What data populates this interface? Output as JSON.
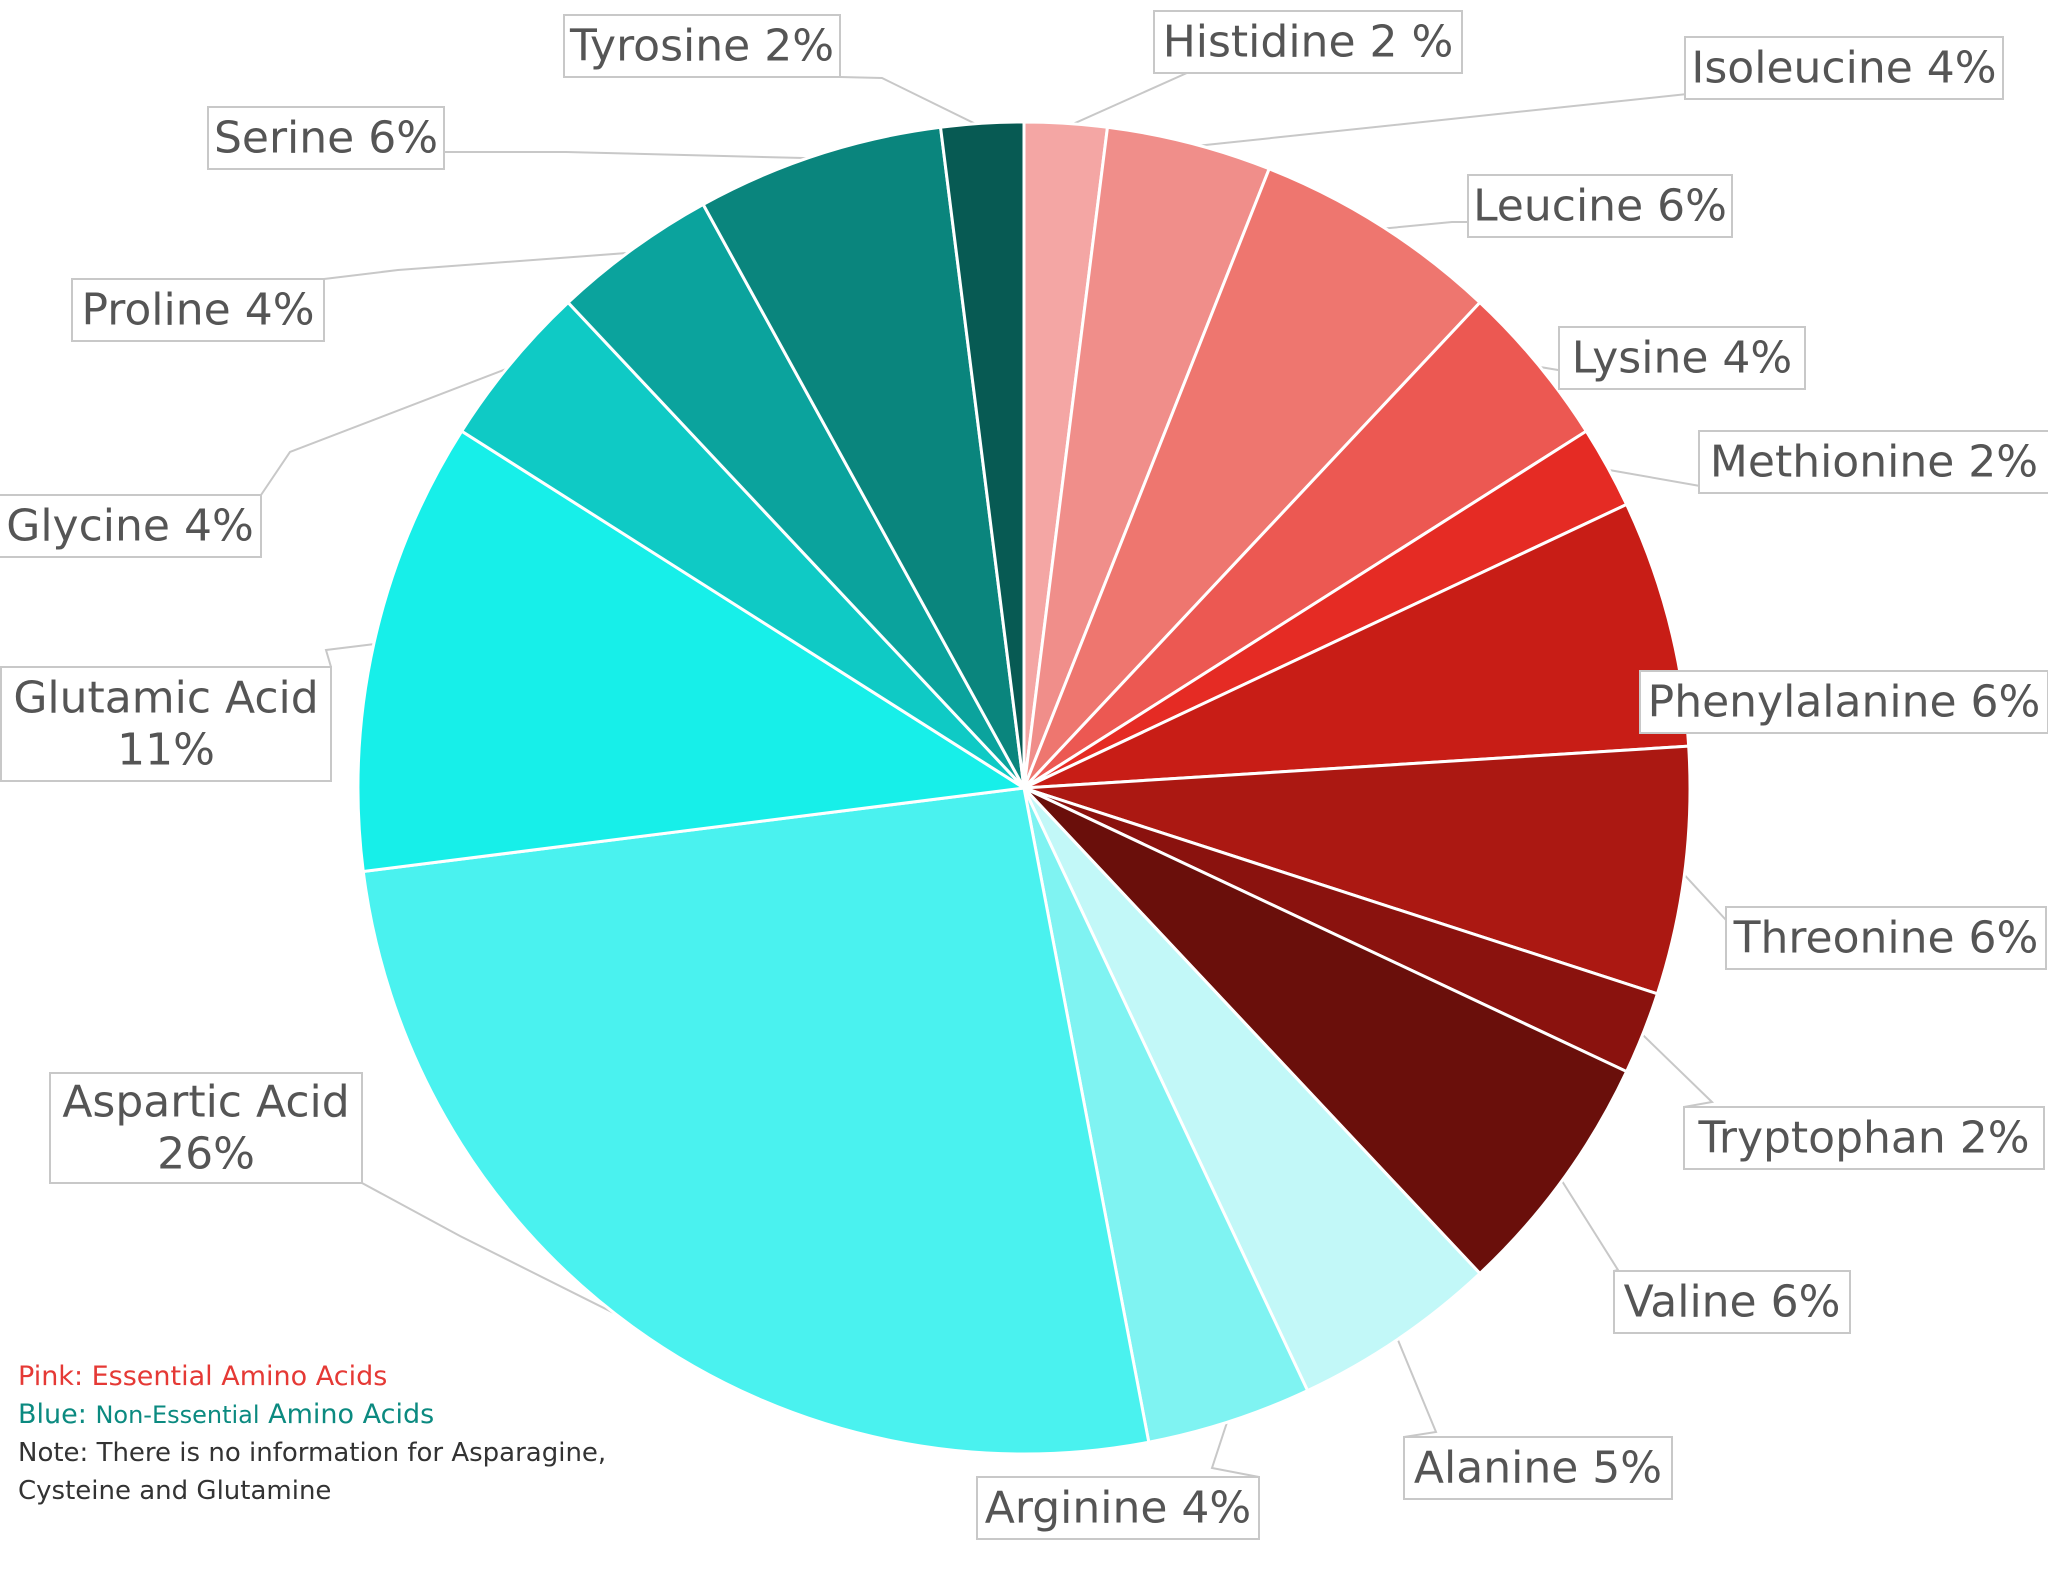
{
  "chart_data": {
    "type": "pie",
    "title": "",
    "start_angle_deg": 0,
    "direction": "clockwise",
    "slices": [
      {
        "label_lines": [
          "Histidine 2 %"
        ],
        "value": 2,
        "color": "#f4a6a4"
      },
      {
        "label_lines": [
          "Isoleucine 4%"
        ],
        "value": 4,
        "color": "#f08e8a"
      },
      {
        "label_lines": [
          "Leucine 6%"
        ],
        "value": 6,
        "color": "#ee766f"
      },
      {
        "label_lines": [
          "Lysine 4%"
        ],
        "value": 4,
        "color": "#ec5852"
      },
      {
        "label_lines": [
          "Methionine 2%"
        ],
        "value": 2,
        "color": "#e52b24"
      },
      {
        "label_lines": [
          "Phenylalanine 6%"
        ],
        "value": 6,
        "color": "#c81d16"
      },
      {
        "label_lines": [
          "Threonine 6%"
        ],
        "value": 6,
        "color": "#ab1812"
      },
      {
        "label_lines": [
          "Tryptophan 2%"
        ],
        "value": 2,
        "color": "#8a120e"
      },
      {
        "label_lines": [
          "Valine 6%"
        ],
        "value": 6,
        "color": "#6a0f0b"
      },
      {
        "label_lines": [
          "Alanine 5%"
        ],
        "value": 5,
        "color": "#c2f8f8"
      },
      {
        "label_lines": [
          "Arginine 4%"
        ],
        "value": 4,
        "color": "#7ff3f2"
      },
      {
        "label_lines": [
          "Aspartic Acid",
          "26%"
        ],
        "value": 26,
        "color": "#4af2ef"
      },
      {
        "label_lines": [
          "Glutamic Acid",
          "11%"
        ],
        "value": 11,
        "color": "#17efe9"
      },
      {
        "label_lines": [
          "Glycine 4%"
        ],
        "value": 4,
        "color": "#0fcac5"
      },
      {
        "label_lines": [
          "Proline 4%"
        ],
        "value": 4,
        "color": "#0ba39d"
      },
      {
        "label_lines": [
          "Serine 6%"
        ],
        "value": 6,
        "color": "#0a857d"
      },
      {
        "label_lines": [
          "Tyrosine 2%"
        ],
        "value": 2,
        "color": "#075a53"
      }
    ]
  },
  "notes": {
    "pink_line": "Pink: Essential Amino Acids",
    "blue_prefix": "Blue: ",
    "blue_middle": "Non-Essential",
    "blue_suffix": " Amino Acids",
    "note_line1": "Note: There is no information for Asparagine,",
    "note_line2": "Cysteine and Glutamine"
  },
  "colors": {
    "essential": "#e53935",
    "non_essential": "#0b8a80"
  }
}
